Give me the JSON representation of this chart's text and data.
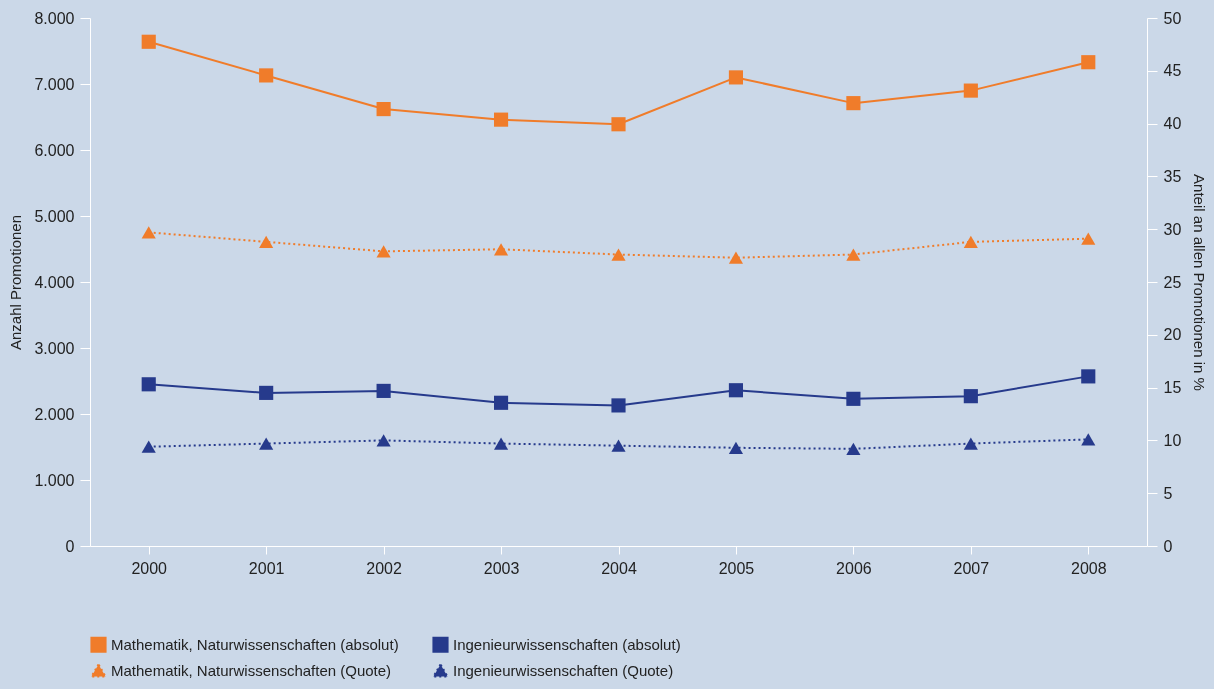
{
  "chart_data": {
    "type": "line",
    "ylabel": "Anzahl Promotionen",
    "y2label": "Anteil an allen Promotionen in %",
    "categories": [
      "2000",
      "2001",
      "2002",
      "2003",
      "2004",
      "2005",
      "2006",
      "2007",
      "2008"
    ],
    "ylim": [
      0,
      8000
    ],
    "yticks": [
      {
        "value": 0,
        "label": "0"
      },
      {
        "value": 1000,
        "label": "1.000"
      },
      {
        "value": 2000,
        "label": "2.000"
      },
      {
        "value": 3000,
        "label": "3.000"
      },
      {
        "value": 4000,
        "label": "4.000"
      },
      {
        "value": 5000,
        "label": "5.000"
      },
      {
        "value": 6000,
        "label": "6.000"
      },
      {
        "value": 7000,
        "label": "7.000"
      },
      {
        "value": 8000,
        "label": "8.000"
      }
    ],
    "y2lim": [
      0,
      50
    ],
    "y2ticks": [
      0,
      5,
      10,
      15,
      20,
      25,
      30,
      35,
      40,
      45,
      50
    ],
    "grid": false,
    "legend": "bottom",
    "series": [
      {
        "name": "Mathematik, Naturwissenschaften (absolut)",
        "color": "#f07c2a",
        "marker": "square",
        "line_style": "solid",
        "values": [
          7640,
          7130,
          6620,
          6460,
          6390,
          7100,
          6710,
          6900,
          7330
        ]
      },
      {
        "name": "Ingenieurwissenschaften (absolut)",
        "color": "#263a8c",
        "marker": "square",
        "line_style": "solid",
        "values": [
          2450,
          2320,
          2350,
          2170,
          2130,
          2360,
          2230,
          2270,
          2570
        ]
      },
      {
        "name": "Mathematik, Naturwissenschaften (Quote)",
        "color": "#f07c2a",
        "marker": "triangle",
        "line_style": "dotted",
        "axis": "y2",
        "values": [
          29.7,
          28.8,
          27.9,
          28.1,
          27.6,
          27.3,
          27.6,
          28.8,
          29.1
        ]
      },
      {
        "name": "Ingenieurwissenschaften (Quote)",
        "color": "#263a8c",
        "marker": "triangle",
        "line_style": "dotted",
        "axis": "y2",
        "values": [
          9.4,
          9.7,
          10.0,
          9.7,
          9.5,
          9.3,
          9.2,
          9.7,
          10.1
        ]
      }
    ]
  }
}
